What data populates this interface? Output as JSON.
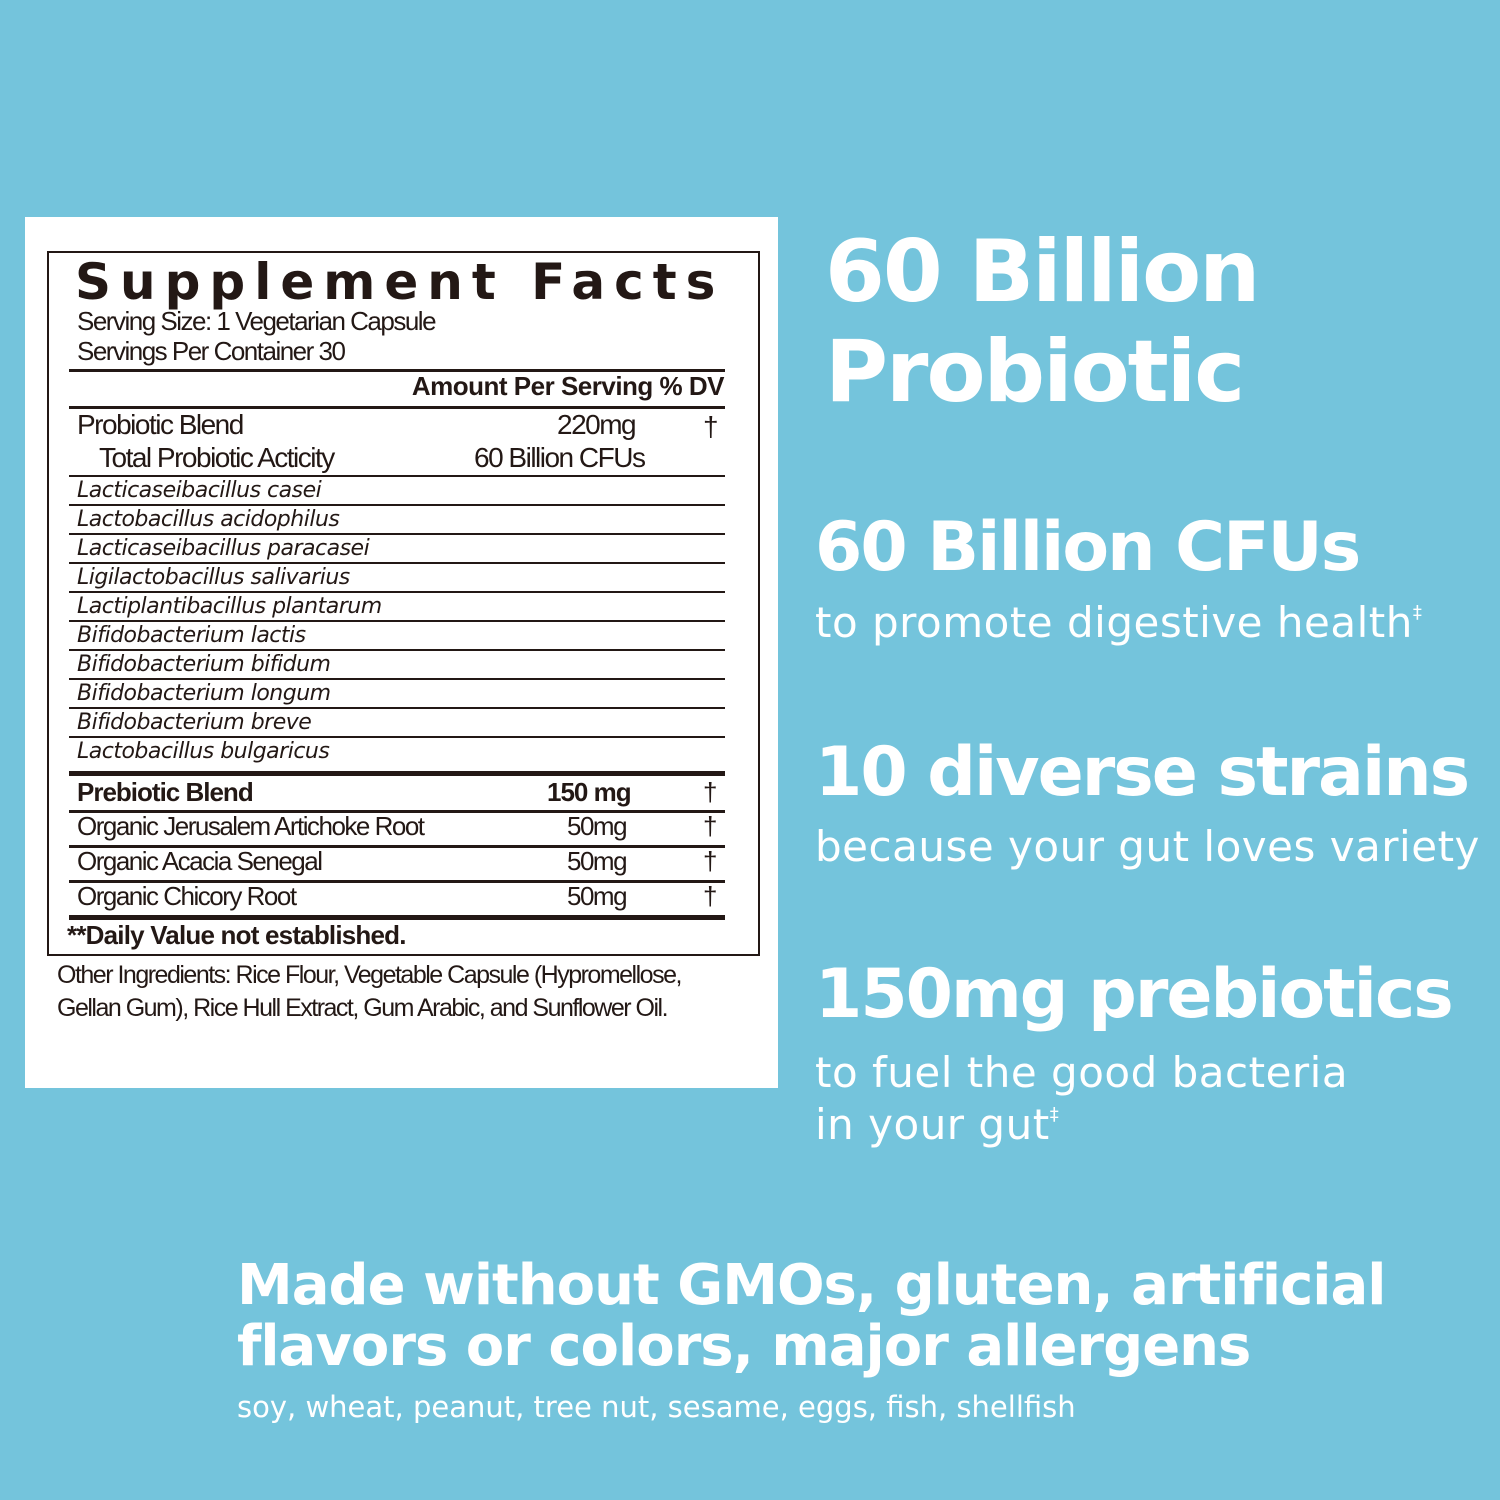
{
  "label": {
    "title": "Supplement Facts",
    "serving_size": "Serving Size: 1 Vegetarian Capsule",
    "servings_per_container": "Servings Per Container 30",
    "header": "Amount Per Serving % DV",
    "probiotic": {
      "name": "Probiotic Blend",
      "amount": "220mg",
      "dv": "†"
    },
    "activity": {
      "name": "Total Probiotic Acticity",
      "amount": "60 Billion CFUs"
    },
    "strains": [
      "Lacticaseibacillus casei",
      "Lactobacillus acidophilus",
      "Lacticaseibacillus paracasei",
      "Ligilactobacillus salivarius",
      "Lactiplantibacillus plantarum",
      "Bifidobacterium lactis",
      "Bifidobacterium bifidum",
      "Bifidobacterium longum",
      "Bifidobacterium breve",
      "Lactobacillus bulgaricus"
    ],
    "prebiotic": {
      "name": "Prebiotic Blend",
      "amount": "150 mg",
      "dv": "†"
    },
    "prebiotics": [
      {
        "name": "Organic Jerusalem Artichoke Root",
        "amount": "50mg",
        "dv": "†"
      },
      {
        "name": "Organic Acacia Senegal",
        "amount": "50mg",
        "dv": "†"
      },
      {
        "name": "Organic Chicory Root",
        "amount": "50mg",
        "dv": "†"
      }
    ],
    "footnote": "**Daily Value not established.",
    "other_1": "Other Ingredients: Rice Flour, Vegetable Capsule (Hypromellose,",
    "other_2": "Gellan Gum), Rice Hull Extract, Gum Arabic, and Sunflower Oil."
  },
  "features": {
    "headline_1": "60 Billion",
    "headline_2": "Probiotic",
    "cfu_title": "60 Billion CFUs",
    "cfu_sub": "to promote digestive health",
    "cfu_mark": "‡",
    "strains_title": "10 diverse strains",
    "strains_sub": "because your gut loves variety",
    "prebiotic_title": "150mg prebiotics",
    "prebiotic_sub_1": "to fuel the good bacteria",
    "prebiotic_sub_2": "in your gut",
    "prebiotic_mark": "‡"
  },
  "bottom": {
    "line_1": "Made without GMOs, gluten, artificial",
    "line_2": "flavors or colors, major allergens",
    "allergens": "soy, wheat, peanut, tree nut, sesame, eggs, fish, shellfish"
  },
  "colors": {
    "background": "#74c4dc",
    "text": "#ffffff",
    "label_ink": "#231815"
  }
}
